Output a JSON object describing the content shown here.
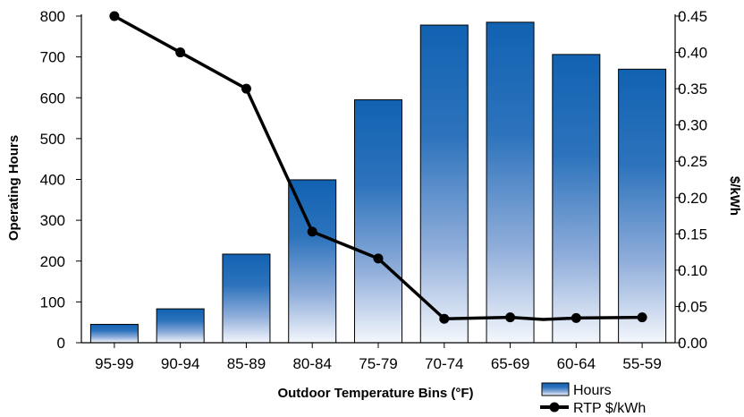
{
  "chart_data": {
    "type": "bar",
    "categories": [
      "95-99",
      "90-94",
      "85-89",
      "80-84",
      "75-79",
      "70-74",
      "65-69",
      "60-64",
      "55-59"
    ],
    "series": [
      {
        "name": "Hours",
        "type": "bar",
        "axis": "left",
        "values": [
          45,
          83,
          217,
          399,
          595,
          778,
          785,
          706,
          670
        ]
      },
      {
        "name": "RTP $/kWh",
        "type": "line",
        "axis": "right",
        "values": [
          0.45,
          0.4,
          0.35,
          0.153,
          0.116,
          0.033,
          0.035,
          0.034,
          0.035
        ]
      }
    ],
    "extra_line_point": {
      "x_between": [
        "65-69",
        "60-64"
      ],
      "value": 0.032
    },
    "xlabel": "Outdoor Temperature Bins (°F)",
    "ylabel": "Operating Hours",
    "y2label": "$/kWh",
    "ylim": [
      0,
      800
    ],
    "y2lim": [
      0,
      0.45
    ],
    "yticks": [
      "0",
      "100",
      "200",
      "300",
      "400",
      "500",
      "600",
      "700",
      "800"
    ],
    "y2ticks": [
      "0.00",
      "0.05",
      "0.10",
      "0.15",
      "0.20",
      "0.25",
      "0.30",
      "0.35",
      "0.40",
      "0.45"
    ],
    "legend_position": "bottom-right",
    "grid": false,
    "colors": {
      "bar_top": "#1162b2",
      "bar_bottom": "#f4f7fc",
      "line": "#000000"
    }
  }
}
